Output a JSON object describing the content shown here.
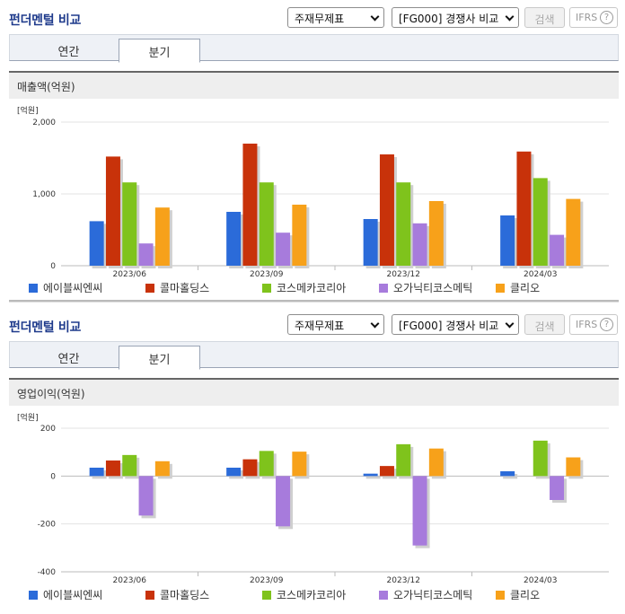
{
  "colors": {
    "series": [
      "#2b6bd9",
      "#c8320a",
      "#7fc31c",
      "#a77bdc",
      "#f7a11a"
    ],
    "title": "#1f3b8c"
  },
  "panels": [
    {
      "title": "펀더멘털 비교",
      "select_statement": "주재무제표",
      "select_compare": "[FG000] 경쟁사 비교",
      "search_label": "검색",
      "ifrs_label": "IFRS",
      "help_icon": "?",
      "tabs": [
        {
          "label": "연간"
        },
        {
          "label": "분기"
        }
      ],
      "active_tab": 1,
      "subheading": "매출액(억원)"
    },
    {
      "title": "펀더멘털 비교",
      "select_statement": "주재무제표",
      "select_compare": "[FG000] 경쟁사 비교",
      "search_label": "검색",
      "ifrs_label": "IFRS",
      "help_icon": "?",
      "tabs": [
        {
          "label": "연간"
        },
        {
          "label": "분기"
        }
      ],
      "active_tab": 1,
      "subheading": "영업이익(억원)"
    }
  ],
  "chart_data": [
    {
      "type": "bar",
      "unit_label": "[억원]",
      "categories": [
        "2023/06",
        "2023/09",
        "2023/12",
        "2024/03"
      ],
      "ylim": [
        0,
        2000
      ],
      "yticks": [
        0,
        1000,
        2000
      ],
      "ytick_labels": [
        "0",
        "1,000",
        "2,000"
      ],
      "series": [
        {
          "name": "에이블씨엔씨",
          "values": [
            620,
            750,
            650,
            700
          ]
        },
        {
          "name": "콜마홀딩스",
          "values": [
            1520,
            1700,
            1550,
            1590
          ]
        },
        {
          "name": "코스메카코리아",
          "values": [
            1160,
            1160,
            1160,
            1220
          ]
        },
        {
          "name": "오가닉티코스메틱",
          "values": [
            310,
            460,
            590,
            430
          ]
        },
        {
          "name": "클리오",
          "values": [
            810,
            850,
            900,
            930
          ]
        }
      ]
    },
    {
      "type": "bar",
      "unit_label": "[억원]",
      "categories": [
        "2023/06",
        "2023/09",
        "2023/12",
        "2024/03"
      ],
      "ylim": [
        -400,
        200
      ],
      "yticks": [
        -400,
        -200,
        0,
        200
      ],
      "ytick_labels": [
        "-400",
        "-200",
        "0",
        "200"
      ],
      "series": [
        {
          "name": "에이블씨엔씨",
          "values": [
            35,
            35,
            10,
            20
          ]
        },
        {
          "name": "콜마홀딩스",
          "values": [
            65,
            70,
            42,
            null
          ]
        },
        {
          "name": "코스메카코리아",
          "values": [
            88,
            105,
            133,
            148
          ]
        },
        {
          "name": "오가닉티코스메틱",
          "values": [
            -165,
            -210,
            -290,
            -100
          ]
        },
        {
          "name": "클리오",
          "values": [
            62,
            102,
            115,
            78
          ]
        }
      ]
    }
  ]
}
